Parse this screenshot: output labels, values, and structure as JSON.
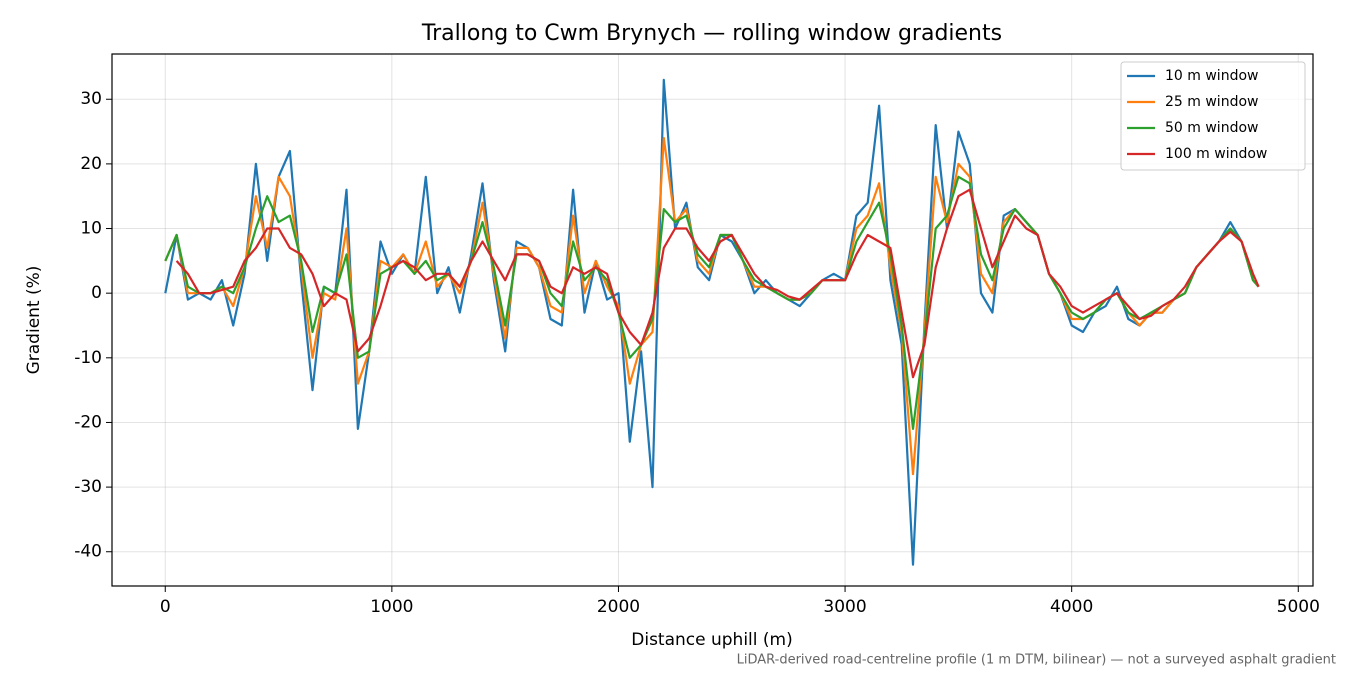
{
  "chart_data": {
    "type": "line",
    "title": "Trallong to Cwm Brynych — rolling window gradients",
    "xlabel": "Distance uphill (m)",
    "ylabel": "Gradient (%)",
    "footnote": "LiDAR-derived road-centreline profile (1 m DTM, bilinear) — not a surveyed asphalt gradient",
    "x": [
      0,
      50,
      100,
      150,
      200,
      250,
      300,
      350,
      400,
      450,
      500,
      550,
      600,
      650,
      700,
      750,
      800,
      850,
      900,
      950,
      1000,
      1050,
      1100,
      1150,
      1200,
      1250,
      1300,
      1350,
      1400,
      1450,
      1500,
      1550,
      1600,
      1650,
      1700,
      1750,
      1800,
      1850,
      1900,
      1950,
      2000,
      2050,
      2100,
      2150,
      2200,
      2250,
      2300,
      2350,
      2400,
      2450,
      2500,
      2550,
      2600,
      2650,
      2700,
      2750,
      2800,
      2850,
      2900,
      2950,
      3000,
      3050,
      3100,
      3150,
      3200,
      3250,
      3300,
      3350,
      3400,
      3450,
      3500,
      3550,
      3600,
      3650,
      3700,
      3750,
      3800,
      3850,
      3900,
      3950,
      4000,
      4050,
      4100,
      4150,
      4200,
      4250,
      4300,
      4350,
      4400,
      4450,
      4500,
      4550,
      4600,
      4650,
      4700,
      4750,
      4800,
      4825
    ],
    "series": [
      {
        "name": "10 m window",
        "color": "#1f77b4",
        "values": [
          0,
          9,
          -1,
          0,
          -1,
          2,
          -5,
          3,
          20,
          5,
          18,
          22,
          2,
          -15,
          1,
          0,
          16,
          -21,
          -9,
          8,
          3,
          6,
          3,
          18,
          0,
          4,
          -3,
          6,
          17,
          2,
          -9,
          8,
          7,
          4,
          -4,
          -5,
          16,
          -3,
          5,
          -1,
          0,
          -23,
          -9,
          -30,
          33,
          10,
          14,
          4,
          2,
          9,
          8,
          5,
          0,
          2,
          0,
          -1,
          -2,
          0,
          2,
          3,
          2,
          12,
          14,
          29,
          2,
          -8,
          -42,
          -5,
          26,
          10,
          25,
          20,
          0,
          -3,
          12,
          13,
          11,
          9,
          3,
          0,
          -5,
          -6,
          -3,
          -2,
          1,
          -4,
          -5,
          -3,
          -3,
          -1,
          0,
          4,
          6,
          8,
          11,
          8,
          2,
          1
        ]
      },
      {
        "name": "25 m window",
        "color": "#ff7f0e",
        "values": [
          5,
          9,
          0,
          0,
          0,
          1,
          -2,
          4,
          15,
          7,
          18,
          15,
          4,
          -10,
          0,
          -1,
          10,
          -14,
          -9,
          5,
          4,
          6,
          3,
          8,
          1,
          3,
          0,
          5,
          14,
          3,
          -7,
          7,
          7,
          4,
          -2,
          -3,
          12,
          0,
          5,
          1,
          -2,
          -14,
          -8,
          -6,
          24,
          11,
          13,
          5,
          3,
          9,
          9,
          5,
          1,
          1,
          0,
          -1,
          -1,
          0,
          2,
          2,
          2,
          10,
          12,
          17,
          4,
          -6,
          -28,
          -6,
          18,
          11,
          20,
          18,
          3,
          0,
          11,
          13,
          11,
          9,
          3,
          0,
          -4,
          -4,
          -3,
          -1,
          0,
          -3,
          -5,
          -3,
          -3,
          -1,
          0,
          4,
          6,
          8,
          10,
          8,
          2,
          1
        ]
      },
      {
        "name": "50 m window",
        "color": "#2ca02c",
        "values": [
          5,
          9,
          1,
          0,
          0,
          1,
          0,
          4,
          10,
          15,
          11,
          12,
          5,
          -6,
          1,
          0,
          6,
          -10,
          -9,
          3,
          4,
          5,
          3,
          5,
          2,
          3,
          1,
          5,
          11,
          4,
          -5,
          6,
          6,
          5,
          0,
          -2,
          8,
          2,
          4,
          2,
          -3,
          -10,
          -8,
          -4,
          13,
          11,
          12,
          6,
          4,
          9,
          9,
          5,
          2,
          1,
          0,
          -1,
          -1,
          0,
          2,
          2,
          2,
          8,
          11,
          14,
          6,
          -5,
          -21,
          -7,
          10,
          12,
          18,
          17,
          6,
          2,
          10,
          13,
          11,
          9,
          3,
          0,
          -3,
          -4,
          -3,
          -1,
          0,
          -3,
          -4,
          -3,
          -2,
          -1,
          0,
          4,
          6,
          8,
          10,
          8,
          2,
          1
        ]
      },
      {
        "name": "100 m window",
        "color": "#d62728",
        "values": [
          null,
          5,
          3,
          0,
          0,
          0.5,
          1,
          5,
          7,
          10,
          10,
          7,
          6,
          3,
          -2,
          0,
          -1,
          -9,
          -7,
          -2,
          4,
          5,
          4,
          2,
          3,
          3,
          1,
          5,
          8,
          5,
          2,
          6,
          6,
          5,
          1,
          0,
          4,
          3,
          4,
          3,
          -3,
          -6,
          -8,
          -3,
          7,
          10,
          10,
          7,
          5,
          8,
          9,
          6,
          3,
          1,
          0.5,
          -0.5,
          -1,
          0.5,
          2,
          2,
          2,
          6,
          9,
          8,
          7,
          -3,
          -13,
          -8,
          4,
          10,
          15,
          16,
          10,
          4,
          8,
          12,
          10,
          9,
          3,
          1,
          -2,
          -3,
          -2,
          -1,
          0,
          -2,
          -4,
          -3.5,
          -2,
          -1,
          1,
          4,
          6,
          8,
          9.5,
          8,
          3,
          1
        ]
      }
    ],
    "xlim": [
      -235,
      5065
    ],
    "ylim": [
      -45.3,
      37
    ],
    "xticks": [
      0,
      1000,
      2000,
      3000,
      4000,
      5000
    ],
    "yticks": [
      -40,
      -30,
      -20,
      -10,
      0,
      10,
      20,
      30
    ],
    "grid": true,
    "legend": "upper right"
  }
}
